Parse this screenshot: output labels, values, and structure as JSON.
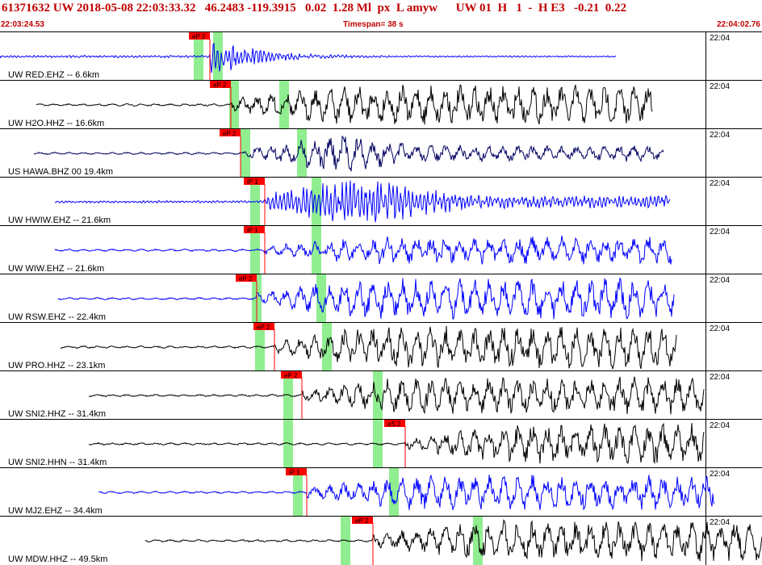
{
  "header": {
    "title": "61371632 UW 2018-05-08 22:03:33.32   46.2483 -119.3915   0.02  1.28 Ml  px  L amyw      UW 01  H   1  -  H E3   -0.21  0.22",
    "start_time": "22:03:24.53",
    "timespan": "Timespan=  38 s",
    "end_time": "22:04:02.76"
  },
  "traces": [
    {
      "label": "UW RED.EHZ -- 6.6km",
      "color": "#0000ff",
      "pick": "eP 2",
      "tick": "22:04",
      "start": 0,
      "end": 763,
      "p": 260,
      "amp": 30,
      "shape": "burst",
      "green": [
        246,
        270
      ]
    },
    {
      "label": "UW H2O.HHZ -- 16.6km",
      "color": "#000000",
      "pick": "eP 2",
      "tick": "22:04",
      "start": 45,
      "end": 808,
      "p": 286,
      "amp": 26,
      "shape": "grow",
      "green": [
        290,
        352
      ]
    },
    {
      "label": "US HAWA.BHZ 00 19.4km",
      "color": "#000060",
      "pick": "eP 2",
      "tick": "22:04",
      "start": 42,
      "end": 822,
      "p": 298,
      "amp": 26,
      "shape": "burst2",
      "green": [
        304,
        374
      ]
    },
    {
      "label": "UW HWIW.EHZ -- 21.6km",
      "color": "#0000ff",
      "pick": "iP 1",
      "tick": "22:04",
      "start": 68,
      "end": 830,
      "p": 328,
      "amp": 28,
      "shape": "dense",
      "green": [
        316,
        392
      ]
    },
    {
      "label": "UW WIW.EHZ -- 21.6km",
      "color": "#0000ff",
      "pick": "iP 1",
      "tick": "22:04",
      "start": 68,
      "end": 832,
      "p": 328,
      "amp": 18,
      "shape": "grow",
      "green": [
        316,
        392
      ]
    },
    {
      "label": "UW RSW.EHZ -- 22.4km",
      "color": "#0000ff",
      "pick": "eP 2",
      "tick": "22:04",
      "start": 72,
      "end": 835,
      "p": 318,
      "amp": 26,
      "shape": "grow",
      "green": [
        318,
        398
      ]
    },
    {
      "label": "UW PRO.HHZ -- 23.1km",
      "color": "#000000",
      "pick": "eP 2",
      "tick": "22:04",
      "start": 75,
      "end": 838,
      "p": 340,
      "amp": 28,
      "shape": "grow",
      "green": [
        322,
        405
      ]
    },
    {
      "label": "UW SNI2.HHZ -- 31.4km",
      "color": "#000000",
      "pick": "eP 2",
      "tick": "22:04",
      "start": 110,
      "end": 872,
      "p": 374,
      "amp": 24,
      "shape": "grow",
      "green": [
        357,
        468
      ]
    },
    {
      "label": "UW SNI2.HHN -- 31.4km",
      "color": "#000000",
      "pick": "eS 2",
      "tick": "22:04",
      "start": 110,
      "end": 872,
      "p": 502,
      "amp": 26,
      "shape": "grow",
      "green": [
        357,
        468
      ]
    },
    {
      "label": "UW MJ2.EHZ -- 34.4km",
      "color": "#0000ff",
      "pick": "iP 1",
      "tick": "22:04",
      "start": 122,
      "end": 885,
      "p": 380,
      "amp": 22,
      "shape": "grow",
      "green": [
        369,
        488
      ]
    },
    {
      "label": "UW MDW.HHZ -- 49.5km",
      "color": "#000000",
      "pick": "eP 2",
      "tick": "22:04",
      "start": 180,
      "end": 944,
      "p": 462,
      "amp": 26,
      "shape": "grow",
      "green": [
        428,
        592
      ]
    }
  ]
}
